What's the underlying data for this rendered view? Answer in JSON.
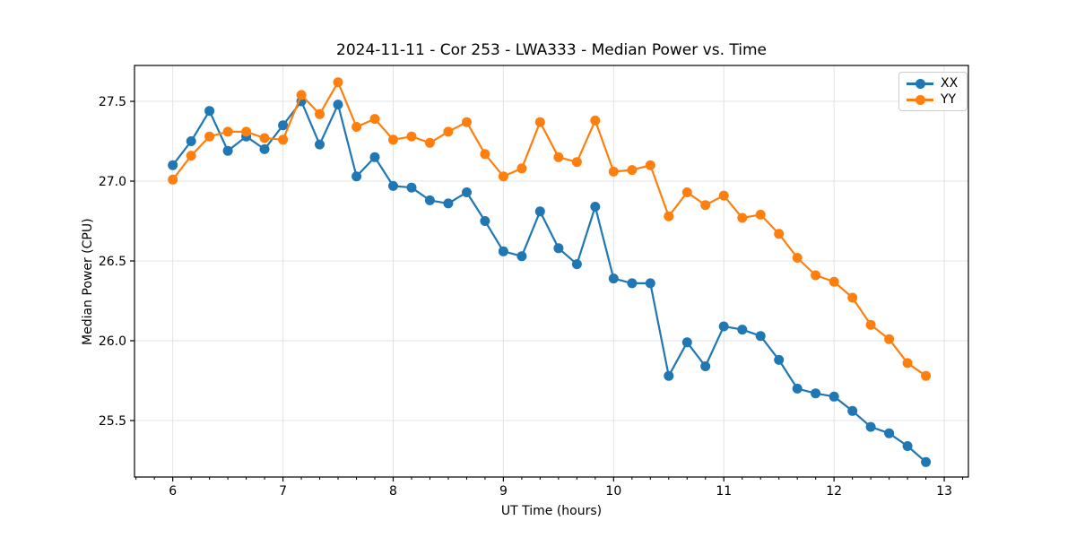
{
  "chart_data": {
    "type": "line",
    "title": "2024-11-11 - Cor 253 - LWA333 - Median Power vs. Time",
    "xlabel": "UT Time (hours)",
    "ylabel": "Median Power (CPU)",
    "xlim": [
      5.653,
      13.219
    ],
    "ylim": [
      25.146,
      27.725
    ],
    "xticks": [
      6,
      7,
      8,
      9,
      10,
      11,
      12,
      13
    ],
    "yticks": [
      25.5,
      26.0,
      26.5,
      27.0,
      27.5
    ],
    "x_minor_step": 0.1666667,
    "grid": true,
    "legend_position": "upper right",
    "x": [
      6.0,
      6.167,
      6.333,
      6.5,
      6.667,
      6.833,
      7.0,
      7.167,
      7.333,
      7.5,
      7.667,
      7.833,
      8.0,
      8.167,
      8.333,
      8.5,
      8.667,
      8.833,
      9.0,
      9.167,
      9.333,
      9.5,
      9.667,
      9.833,
      10.0,
      10.167,
      10.333,
      10.5,
      10.667,
      10.833,
      11.0,
      11.167,
      11.333,
      11.5,
      11.667,
      11.833,
      12.0,
      12.167,
      12.333,
      12.5,
      12.667,
      12.833
    ],
    "series": [
      {
        "name": "XX",
        "color": "#1f77b4",
        "values": [
          27.1,
          27.25,
          27.44,
          27.19,
          27.28,
          27.2,
          27.35,
          27.5,
          27.23,
          27.48,
          27.03,
          27.15,
          26.97,
          26.96,
          26.88,
          26.86,
          26.93,
          26.75,
          26.56,
          26.53,
          26.81,
          26.58,
          26.48,
          26.84,
          26.39,
          26.36,
          26.36,
          25.78,
          25.99,
          25.84,
          26.09,
          26.07,
          26.03,
          25.88,
          25.7,
          25.67,
          25.65,
          25.56,
          25.46,
          25.42,
          25.34,
          25.24
        ]
      },
      {
        "name": "YY",
        "color": "#ff7f0e",
        "values": [
          27.01,
          27.16,
          27.28,
          27.31,
          27.31,
          27.27,
          27.26,
          27.54,
          27.42,
          27.62,
          27.34,
          27.39,
          27.26,
          27.28,
          27.24,
          27.31,
          27.37,
          27.17,
          27.03,
          27.08,
          27.37,
          27.15,
          27.12,
          27.38,
          27.06,
          27.07,
          27.1,
          26.78,
          26.93,
          26.85,
          26.91,
          26.77,
          26.79,
          26.67,
          26.52,
          26.41,
          26.37,
          26.27,
          26.1,
          26.01,
          25.86,
          25.78
        ]
      }
    ]
  }
}
